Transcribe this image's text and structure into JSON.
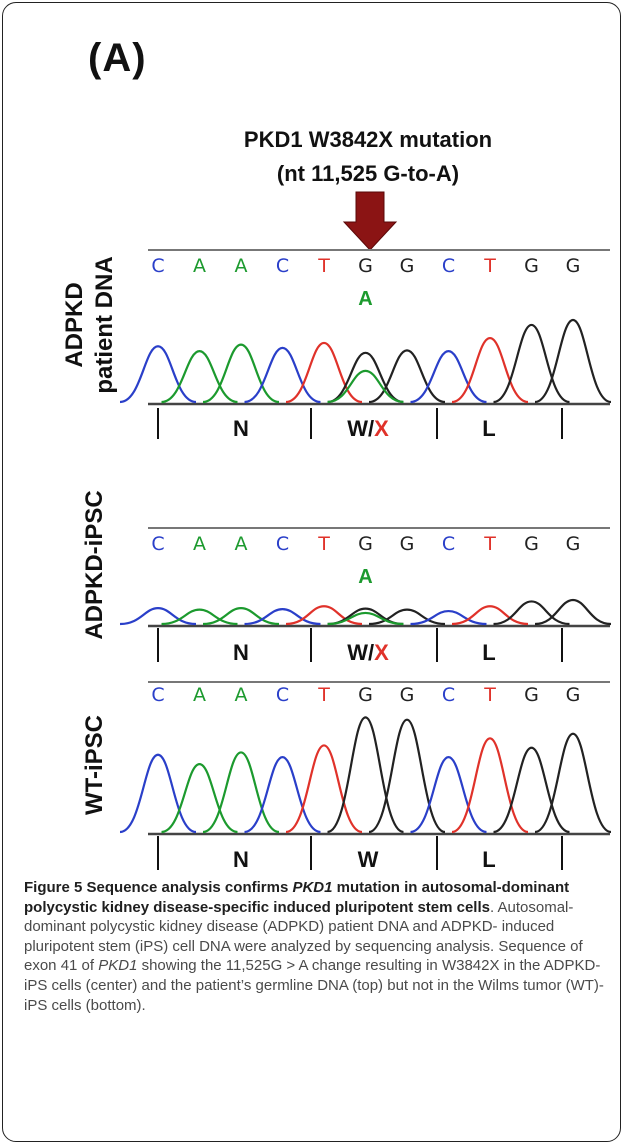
{
  "panel_label": "(A)",
  "mutation": {
    "title": "PKD1 W3842X mutation",
    "subtitle": "(nt 11,525 G-to-A)"
  },
  "tracks": [
    {
      "label": "ADPKD patient DNA",
      "label_lines": [
        "ADPKD",
        "patient DNA"
      ],
      "bases": [
        "C",
        "A",
        "A",
        "C",
        "T",
        "G",
        "G",
        "C",
        "T",
        "G",
        "G"
      ],
      "secondary_base": "A",
      "codons": [
        {
          "aa": "N",
          "mutant": ""
        },
        {
          "aa": "W/",
          "mutant": "X"
        },
        {
          "aa": "L",
          "mutant": ""
        }
      ],
      "peaks": [
        {
          "base": "C",
          "height": 0.68
        },
        {
          "base": "A",
          "height": 0.62
        },
        {
          "base": "A",
          "height": 0.7
        },
        {
          "base": "C",
          "height": 0.66
        },
        {
          "base": "T",
          "height": 0.72
        },
        {
          "base": "G",
          "height": 0.6
        },
        {
          "base": "G",
          "height": 0.63
        },
        {
          "base": "C",
          "height": 0.62
        },
        {
          "base": "T",
          "height": 0.78
        },
        {
          "base": "G",
          "height": 0.94
        },
        {
          "base": "G",
          "height": 1.0
        }
      ],
      "secondary_peak_height": 0.38
    },
    {
      "label": "ADPKD-iPSC",
      "label_lines": [
        "ADPKD-iPSC"
      ],
      "bases": [
        "C",
        "A",
        "A",
        "C",
        "T",
        "G",
        "G",
        "C",
        "T",
        "G",
        "G"
      ],
      "secondary_base": "A",
      "codons": [
        {
          "aa": "N",
          "mutant": ""
        },
        {
          "aa": "W/",
          "mutant": "X"
        },
        {
          "aa": "L",
          "mutant": ""
        }
      ],
      "peaks": [
        {
          "base": "C",
          "height": 0.66
        },
        {
          "base": "A",
          "height": 0.6
        },
        {
          "base": "A",
          "height": 0.66
        },
        {
          "base": "C",
          "height": 0.62
        },
        {
          "base": "T",
          "height": 0.74
        },
        {
          "base": "G",
          "height": 0.64
        },
        {
          "base": "G",
          "height": 0.6
        },
        {
          "base": "C",
          "height": 0.54
        },
        {
          "base": "T",
          "height": 0.74
        },
        {
          "base": "G",
          "height": 0.94
        },
        {
          "base": "G",
          "height": 1.0
        }
      ],
      "secondary_peak_height": 0.46
    },
    {
      "label": "WT-iPSC",
      "label_lines": [
        "WT-iPSC"
      ],
      "bases": [
        "C",
        "A",
        "A",
        "C",
        "T",
        "G",
        "G",
        "C",
        "T",
        "G",
        "G"
      ],
      "secondary_base": "",
      "codons": [
        {
          "aa": "N",
          "mutant": ""
        },
        {
          "aa": "W",
          "mutant": ""
        },
        {
          "aa": "L",
          "mutant": ""
        }
      ],
      "peaks": [
        {
          "base": "C",
          "height": 0.66
        },
        {
          "base": "A",
          "height": 0.58
        },
        {
          "base": "A",
          "height": 0.68
        },
        {
          "base": "C",
          "height": 0.64
        },
        {
          "base": "T",
          "height": 0.74
        },
        {
          "base": "G",
          "height": 0.98
        },
        {
          "base": "G",
          "height": 0.96
        },
        {
          "base": "C",
          "height": 0.64
        },
        {
          "base": "T",
          "height": 0.8
        },
        {
          "base": "G",
          "height": 0.72
        },
        {
          "base": "G",
          "height": 0.84
        }
      ],
      "secondary_peak_height": 0
    }
  ],
  "colors": {
    "C": "#2a3fc9",
    "A": "#1c9a2e",
    "T": "#e0322a",
    "G": "#222222",
    "mutant_aa": "#e0322a",
    "arrow": "#8b1414"
  },
  "caption": {
    "fig": "Figure 5",
    "title_part1": " Sequence analysis confirms ",
    "title_em": "PKD1",
    "title_part2": " mutation in autosomal-dominant polycystic kidney disease-specific induced pluripotent stem cells",
    "body_part1": ". Autosomal-dominant polycystic kidney disease (ADPKD) patient DNA and ADPKD- induced pluripotent stem (iPS) cell DNA were analyzed by sequencing analysis. Sequence of exon 41 of ",
    "body_em": "PKD1",
    "body_part2": " showing the 11,525G > A change resulting in W3842X in the ADPKD-iPS cells (center) and the patient’s germline DNA (top) but not in the Wilms tumor (WT)-iPS cells (bottom)."
  }
}
